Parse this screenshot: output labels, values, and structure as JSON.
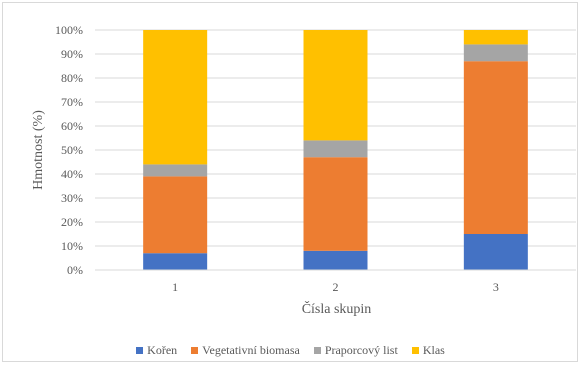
{
  "chart_data": {
    "type": "bar",
    "stacked": true,
    "categories": [
      "1",
      "2",
      "3"
    ],
    "series": [
      {
        "name": "Kořen",
        "color": "#4472C4",
        "values": [
          7,
          8,
          15
        ]
      },
      {
        "name": "Vegetativní biomasa",
        "color": "#ED7D31",
        "values": [
          32,
          39,
          72
        ]
      },
      {
        "name": "Praporcový list",
        "color": "#A5A5A5",
        "values": [
          5,
          7,
          7
        ]
      },
      {
        "name": "Klas",
        "color": "#FFC000",
        "values": [
          56,
          46,
          6
        ]
      }
    ],
    "xlabel": "Čísla skupin",
    "ylabel": "Hmotnost (%)",
    "ylim": [
      0,
      100
    ],
    "yticks": [
      "0%",
      "10%",
      "20%",
      "30%",
      "40%",
      "50%",
      "60%",
      "70%",
      "80%",
      "90%",
      "100%"
    ],
    "grid": true,
    "legend_position": "bottom"
  }
}
